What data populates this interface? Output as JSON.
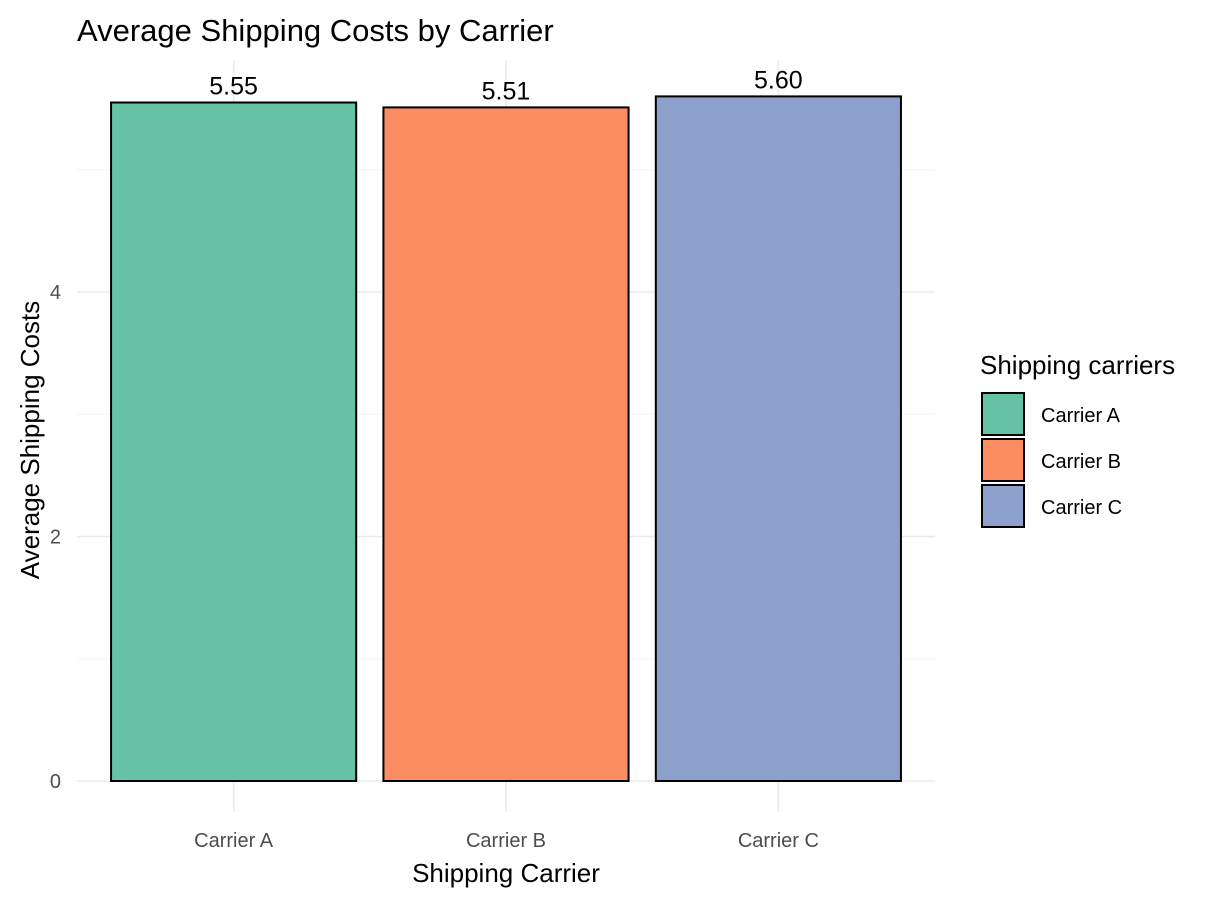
{
  "chart_data": {
    "type": "bar",
    "title": "Average Shipping Costs by Carrier",
    "xlabel": "Shipping Carrier",
    "ylabel": "Average Shipping Costs",
    "categories": [
      "Carrier A",
      "Carrier B",
      "Carrier C"
    ],
    "values": [
      5.55,
      5.51,
      5.6
    ],
    "data_labels": [
      "5.55",
      "5.51",
      "5.60"
    ],
    "colors": [
      "#66c2a5",
      "#fc8d62",
      "#8da0cb"
    ],
    "ylim": [
      0,
      5.6
    ],
    "yticks": [
      0,
      2,
      4
    ],
    "ytick_labels": [
      "0",
      "2",
      "4"
    ],
    "grid": true,
    "legend": {
      "title": "Shipping carriers",
      "position": "right",
      "entries": [
        "Carrier A",
        "Carrier B",
        "Carrier C"
      ]
    }
  }
}
